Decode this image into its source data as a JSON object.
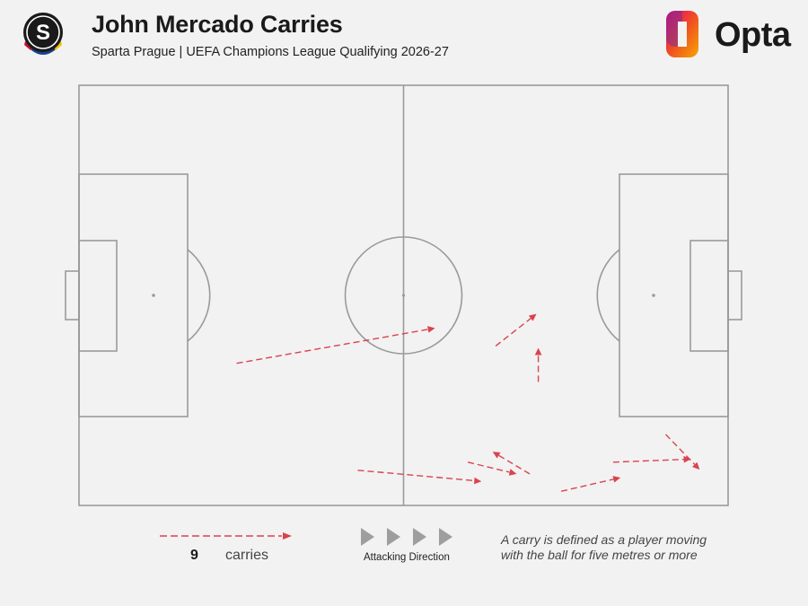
{
  "header": {
    "title": "John Mercado Carries",
    "subtitle": "Sparta Prague | UEFA Champions League Qualifying 2026-27",
    "club_badge_letter": "S",
    "brand": "Opta"
  },
  "legend": {
    "count": "9",
    "count_label": "carries",
    "direction_label": "Attacking Direction",
    "definition_line1": "A carry is defined as a player moving",
    "definition_line2": "with the ball for five metres or more"
  },
  "colors": {
    "carry": "#d9434f",
    "pitch_lines": "#9a9a9a",
    "background": "#f2f2f2",
    "direction_arrows": "#9e9e9e"
  },
  "chart_data": {
    "type": "scatter",
    "x_unit": "metres from own goal line (pitch length 105)",
    "y_unit": "metres from top touchline (pitch width 68)",
    "xlim": [
      0,
      105
    ],
    "ylim": [
      0,
      68
    ],
    "attacking_direction": "left-to-right",
    "carries": [
      {
        "start": [
          25.5,
          45.0
        ],
        "end": [
          57.6,
          39.3
        ]
      },
      {
        "start": [
          67.4,
          42.2
        ],
        "end": [
          74.0,
          37.0
        ]
      },
      {
        "start": [
          74.3,
          48.0
        ],
        "end": [
          74.3,
          42.5
        ]
      },
      {
        "start": [
          45.1,
          62.3
        ],
        "end": [
          65.1,
          64.1
        ]
      },
      {
        "start": [
          62.9,
          61.0
        ],
        "end": [
          70.8,
          62.9
        ]
      },
      {
        "start": [
          72.9,
          62.9
        ],
        "end": [
          66.9,
          59.3
        ]
      },
      {
        "start": [
          78.0,
          65.7
        ],
        "end": [
          87.6,
          63.5
        ]
      },
      {
        "start": [
          86.4,
          61.0
        ],
        "end": [
          99.0,
          60.5
        ]
      },
      {
        "start": [
          94.9,
          56.5
        ],
        "end": [
          100.4,
          62.2
        ]
      }
    ]
  }
}
